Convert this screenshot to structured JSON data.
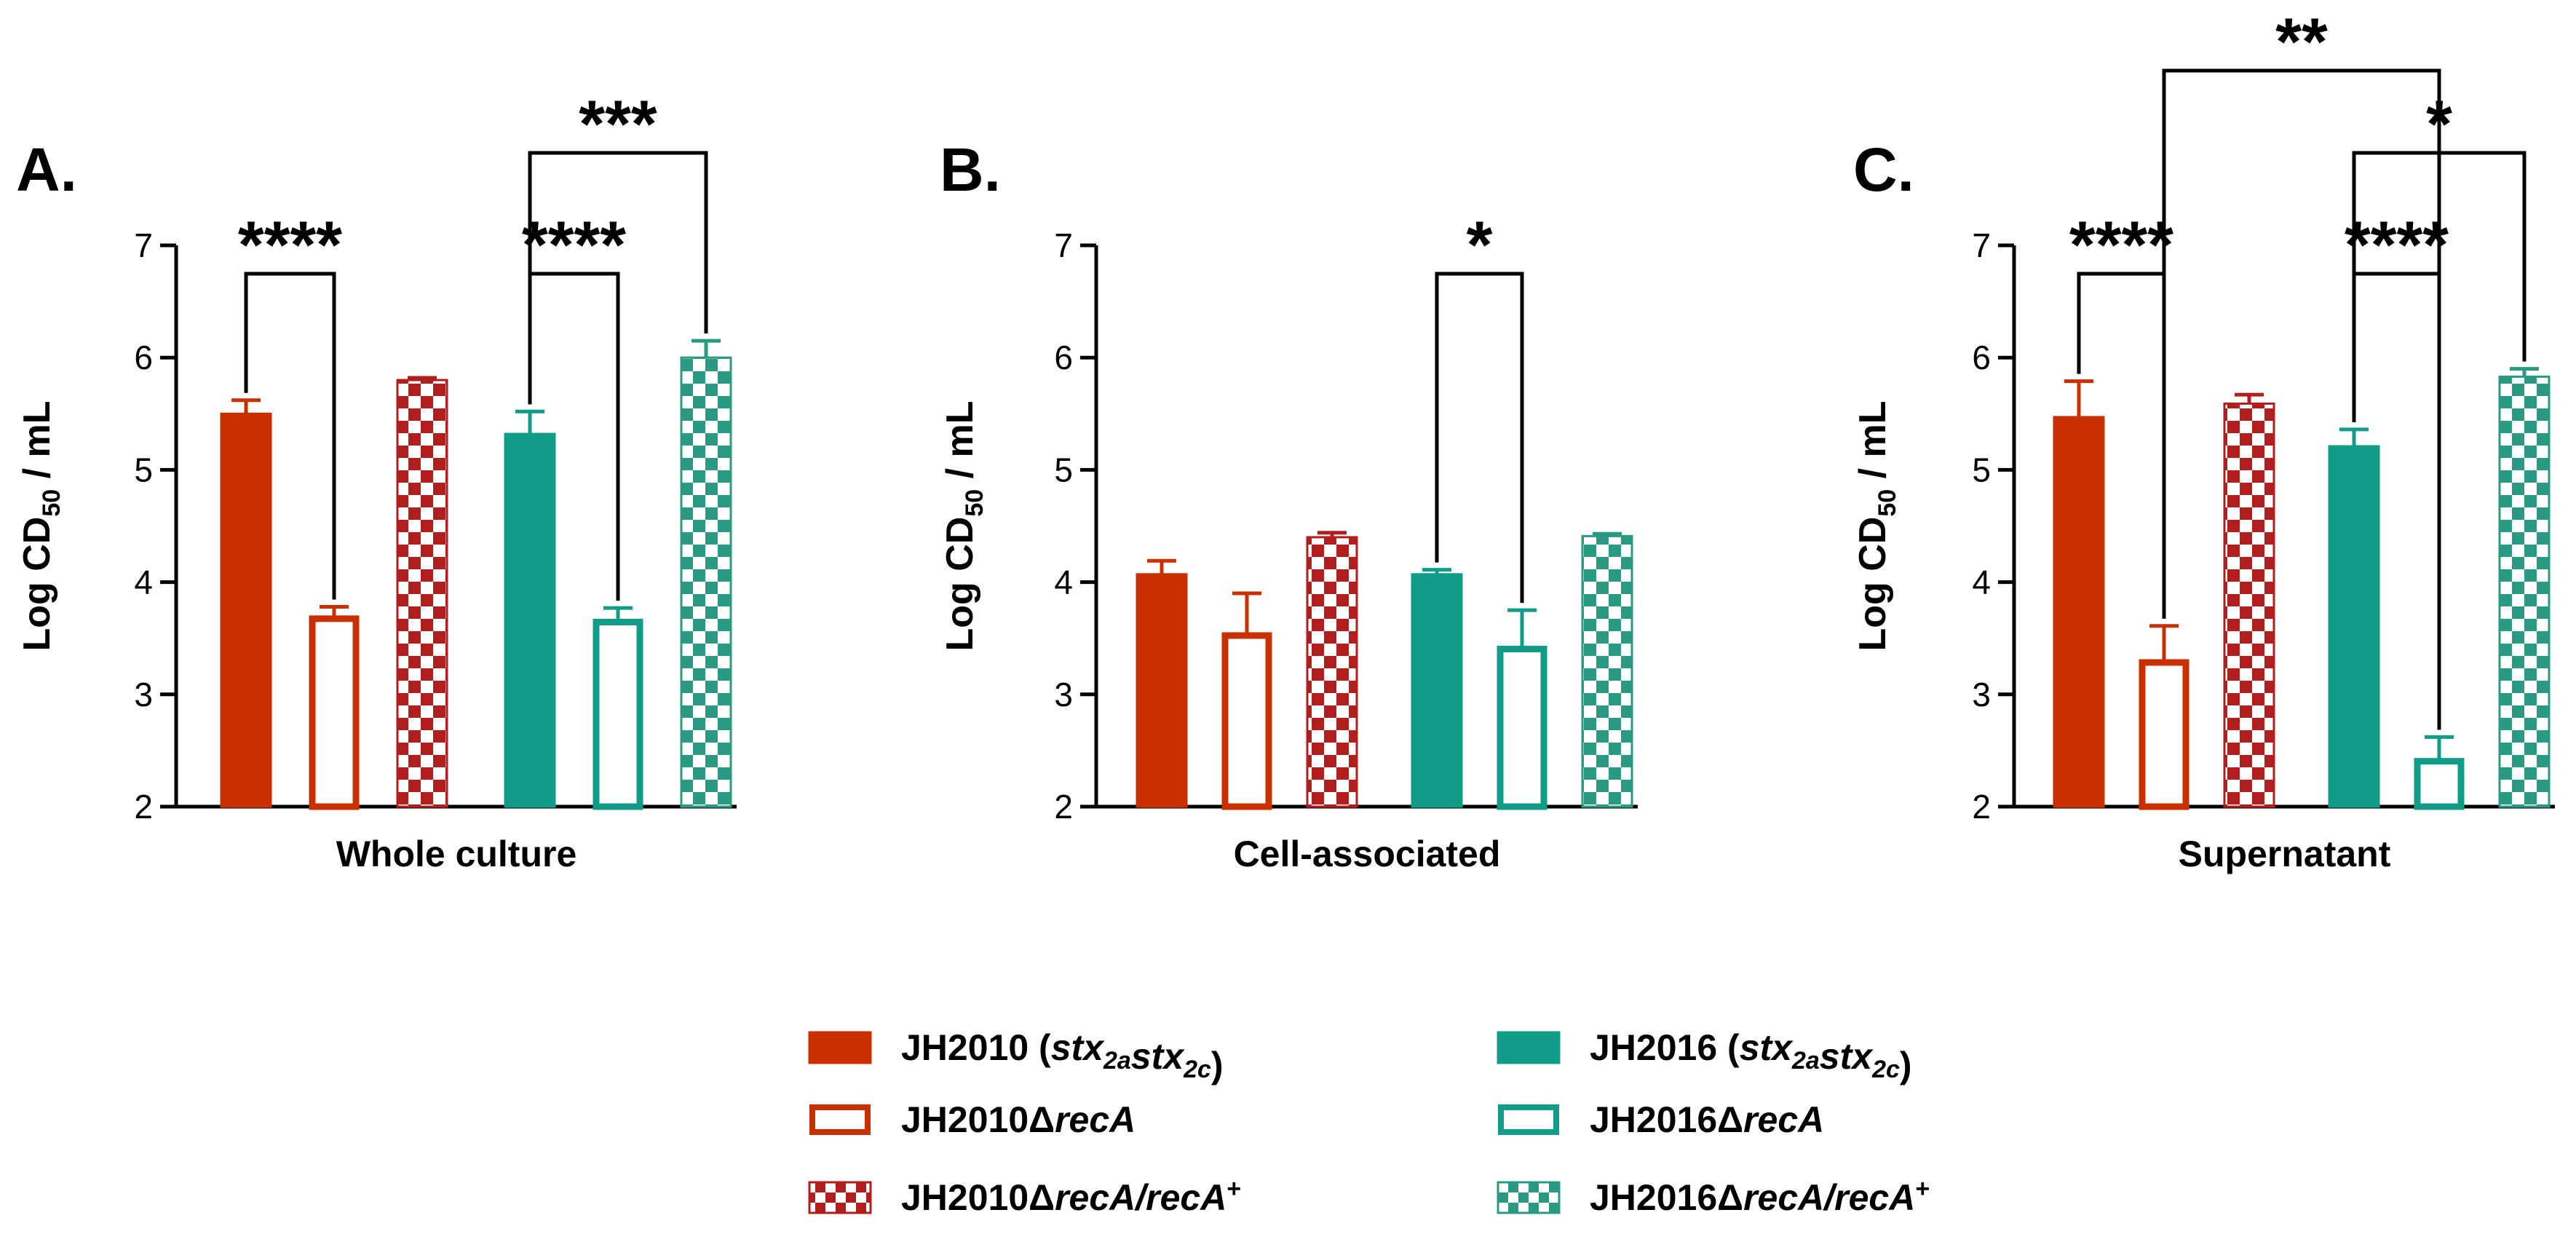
{
  "colors": {
    "jh2010": "#c93000",
    "jh2010_check": "#b01e1e",
    "jh2016": "#119c88",
    "jh2016_check": "#2a9a82",
    "axis": "#000000"
  },
  "legend": [
    {
      "id": "jh2010",
      "prefix": "JH2010 (",
      "parts": [
        [
          "stx",
          "2a"
        ],
        [
          "stx",
          "2c"
        ]
      ],
      "suffix": ")",
      "fill": "solid",
      "color": "#c93000"
    },
    {
      "id": "jh2010-reca",
      "prefix": "JH2010Δ",
      "italic": "recA",
      "fill": "open",
      "color": "#c93000"
    },
    {
      "id": "jh2010-reca-comp",
      "prefix": "JH2010Δ",
      "italic": "recA/recA",
      "sup": "+",
      "fill": "check",
      "color": "#b01e1e"
    },
    {
      "id": "jh2016",
      "prefix": "JH2016 (",
      "parts": [
        [
          "stx",
          "2a"
        ],
        [
          "stx",
          "2c"
        ]
      ],
      "suffix": ")",
      "fill": "solid",
      "color": "#119c88"
    },
    {
      "id": "jh2016-reca",
      "prefix": "JH2016Δ",
      "italic": "recA",
      "fill": "open",
      "color": "#119c88"
    },
    {
      "id": "jh2016-reca-comp",
      "prefix": "JH2016Δ",
      "italic": "recA/recA",
      "sup": "+",
      "fill": "check",
      "color": "#2a9a82"
    }
  ],
  "chart_data": [
    {
      "type": "bar",
      "panel": "A.",
      "xlabel": "Whole culture",
      "ylabel": "Log CD",
      "ylabel_sub": "50",
      "ylabel_suffix": " / mL",
      "ylim": [
        2,
        7
      ],
      "yticks": [
        2,
        3,
        4,
        5,
        6,
        7
      ],
      "bars": [
        {
          "strain": "JH2010 (stx2a stx2c)",
          "style": "jh2010-solid",
          "value": 5.5,
          "err": 0.12
        },
        {
          "strain": "JH2010ΔrecA",
          "style": "jh2010-open",
          "value": 3.7,
          "err": 0.08
        },
        {
          "strain": "JH2010ΔrecA/recA+",
          "style": "jh2010-check",
          "value": 5.8,
          "err": 0.02
        },
        {
          "strain": "JH2016 (stx2a stx2c)",
          "style": "jh2016-solid",
          "value": 5.32,
          "err": 0.2
        },
        {
          "strain": "JH2016ΔrecA",
          "style": "jh2016-open",
          "value": 3.67,
          "err": 0.1
        },
        {
          "strain": "JH2016ΔrecA/recA+",
          "style": "jh2016-check",
          "value": 6.0,
          "err": 0.15
        }
      ],
      "significance": [
        {
          "from": 0,
          "to": 1,
          "label": "****",
          "level": 1
        },
        {
          "from": 3,
          "to": 4,
          "label": "****",
          "level": 1
        },
        {
          "from": 3,
          "to": 5,
          "label": "***",
          "level": 2
        }
      ]
    },
    {
      "type": "bar",
      "panel": "B.",
      "xlabel": "Cell-associated",
      "ylabel": "Log CD",
      "ylabel_sub": "50",
      "ylabel_suffix": " / mL",
      "ylim": [
        2,
        7
      ],
      "yticks": [
        2,
        3,
        4,
        5,
        6,
        7
      ],
      "bars": [
        {
          "strain": "JH2010 (stx2a stx2c)",
          "style": "jh2010-solid",
          "value": 4.07,
          "err": 0.12
        },
        {
          "strain": "JH2010ΔrecA",
          "style": "jh2010-open",
          "value": 3.55,
          "err": 0.35
        },
        {
          "strain": "JH2010ΔrecA/recA+",
          "style": "jh2010-check",
          "value": 4.4,
          "err": 0.04
        },
        {
          "strain": "JH2016 (stx2a stx2c)",
          "style": "jh2016-solid",
          "value": 4.07,
          "err": 0.04
        },
        {
          "strain": "JH2016ΔrecA",
          "style": "jh2016-open",
          "value": 3.43,
          "err": 0.32
        },
        {
          "strain": "JH2016ΔrecA/recA+",
          "style": "jh2016-check",
          "value": 4.41,
          "err": 0.02
        }
      ],
      "significance": [
        {
          "from": 3,
          "to": 4,
          "label": "*",
          "level": 1
        }
      ]
    },
    {
      "type": "bar",
      "panel": "C.",
      "xlabel": "Supernatant",
      "ylabel": "Log CD",
      "ylabel_sub": "50",
      "ylabel_suffix": " / mL",
      "ylim": [
        2,
        7
      ],
      "yticks": [
        2,
        3,
        4,
        5,
        6,
        7
      ],
      "bars": [
        {
          "strain": "JH2010 (stx2a stx2c)",
          "style": "jh2010-solid",
          "value": 5.47,
          "err": 0.32
        },
        {
          "strain": "JH2010ΔrecA",
          "style": "jh2010-open",
          "value": 3.31,
          "err": 0.3
        },
        {
          "strain": "JH2010ΔrecA/recA+",
          "style": "jh2010-check",
          "value": 5.59,
          "err": 0.08
        },
        {
          "strain": "JH2016 (stx2a stx2c)",
          "style": "jh2016-solid",
          "value": 5.21,
          "err": 0.15
        },
        {
          "strain": "JH2016ΔrecA",
          "style": "jh2016-open",
          "value": 2.43,
          "err": 0.19
        },
        {
          "strain": "JH2016ΔrecA/recA+",
          "style": "jh2016-check",
          "value": 5.83,
          "err": 0.07
        }
      ],
      "significance": [
        {
          "from": 0,
          "to": 1,
          "label": "****",
          "level": 1
        },
        {
          "from": 3,
          "to": 4,
          "label": "****",
          "level": 1
        },
        {
          "from": 3,
          "to": 5,
          "label": "*",
          "level": 2
        },
        {
          "from": 1,
          "to": 4,
          "label": "**",
          "level": 3
        }
      ]
    }
  ]
}
